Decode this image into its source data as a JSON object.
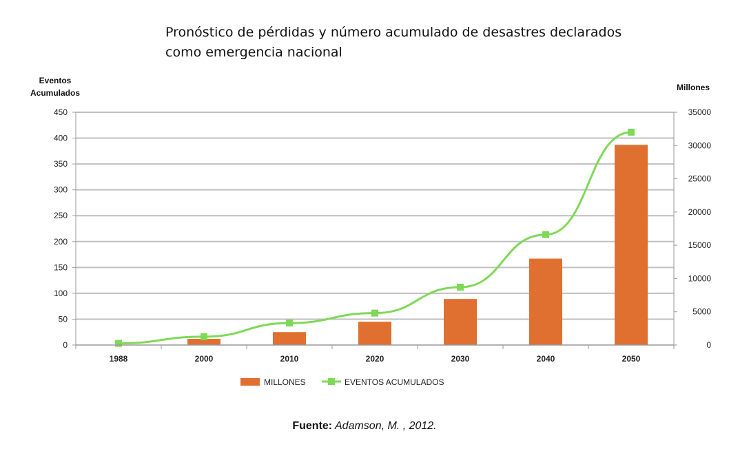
{
  "title_line1": "Pronóstico de pérdidas y número acumulado de desastres declarados",
  "title_line2": "como emergencia nacional",
  "source_label": "Fuente:",
  "source_ref": " Adamson, M. , 2012.",
  "colors": {
    "bar": "#E07030",
    "line": "#7ED957",
    "grid": "#BFBFBF",
    "axis": "#999999",
    "text": "#222222"
  },
  "chart_data": {
    "type": "bar",
    "categories": [
      "1988",
      "2000",
      "2010",
      "2020",
      "2030",
      "2040",
      "2050"
    ],
    "y_left": {
      "label_line1": "Eventos",
      "label_line2": "Acumulados",
      "ylim": [
        0,
        450
      ],
      "ticks": [
        0,
        50,
        100,
        150,
        200,
        250,
        300,
        350,
        400,
        450
      ]
    },
    "y_right": {
      "label": "Millones",
      "ylim": [
        0,
        35000
      ],
      "ticks": [
        0,
        5000,
        10000,
        15000,
        20000,
        25000,
        30000,
        35000
      ]
    },
    "series": [
      {
        "name": "MILLONES",
        "type": "bar",
        "axis": "left",
        "values": [
          0,
          12,
          25,
          45,
          89,
          167,
          387
        ]
      },
      {
        "name": "EVENTOS ACUMULADOS",
        "type": "line",
        "axis": "right",
        "values": [
          250,
          1250,
          3300,
          4800,
          8700,
          16600,
          32000
        ]
      }
    ],
    "grid": true,
    "legend": "bottom"
  }
}
